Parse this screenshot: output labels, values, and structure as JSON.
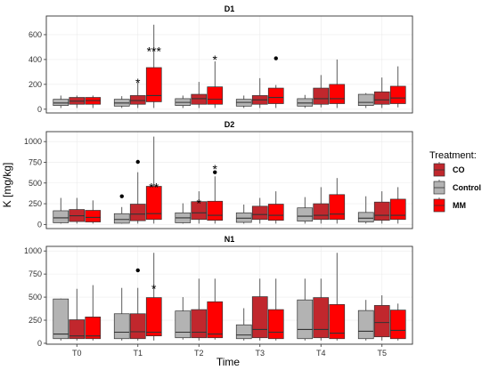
{
  "chart_data": {
    "type": "box",
    "xlabel": "Time",
    "ylabel": "K [mg/kg]",
    "categories": [
      "T0",
      "T1",
      "T2",
      "T3",
      "T4",
      "T5"
    ],
    "legend": {
      "title": "Treatment:",
      "placement": "right",
      "entries": [
        {
          "label": "CO",
          "color": "#c1272d"
        },
        {
          "label": "Control",
          "color": "#b3b3b3"
        },
        {
          "label": "MM",
          "color": "#ff0000"
        }
      ]
    },
    "group_order": [
      "Control",
      "CO",
      "MM"
    ],
    "colors": {
      "Control": "#b3b3b3",
      "CO": "#c1272d",
      "MM": "#ff0000"
    },
    "panels": [
      {
        "title": "D1",
        "ylim": [
          -30,
          750
        ],
        "yticks": [
          0,
          200,
          400,
          600
        ],
        "boxes": {
          "Control": [
            [
              10,
              30,
              50,
              80,
              110
            ],
            [
              10,
              25,
              50,
              80,
              105
            ],
            [
              10,
              30,
              55,
              85,
              110
            ],
            [
              10,
              25,
              55,
              80,
              110
            ],
            [
              10,
              25,
              50,
              85,
              115
            ],
            [
              10,
              30,
              55,
              120,
              130
            ]
          ],
          "CO": [
            [
              10,
              40,
              65,
              95,
              110
            ],
            [
              10,
              40,
              70,
              110,
              215
            ],
            [
              10,
              40,
              85,
              120,
              220
            ],
            [
              10,
              40,
              75,
              110,
              250
            ],
            [
              15,
              40,
              85,
              170,
              275
            ],
            [
              10,
              40,
              75,
              140,
              255
            ]
          ],
          "MM": [
            [
              10,
              40,
              70,
              95,
              110
            ],
            [
              10,
              60,
              110,
              335,
              680
            ],
            [
              10,
              40,
              80,
              180,
              385
            ],
            [
              10,
              45,
              95,
              170,
              195
            ],
            [
              10,
              45,
              85,
              200,
              400
            ],
            [
              15,
              45,
              90,
              185,
              345
            ]
          ]
        },
        "outliers": [
          {
            "cat": "T3",
            "group": "MM",
            "value": 410
          }
        ],
        "annotations": [
          {
            "cat": "T1",
            "group": "CO",
            "text": "*",
            "value": 235
          },
          {
            "cat": "T1",
            "group": "MM",
            "text": "***",
            "value": 490
          },
          {
            "cat": "T2",
            "group": "MM",
            "text": "*",
            "value": 420
          }
        ]
      },
      {
        "title": "D2",
        "ylim": [
          -50,
          1120
        ],
        "yticks": [
          0,
          250,
          500,
          750,
          1000
        ],
        "boxes": {
          "Control": [
            [
              10,
              20,
              80,
              165,
              320
            ],
            [
              10,
              15,
              60,
              130,
              210
            ],
            [
              10,
              20,
              80,
              140,
              255
            ],
            [
              10,
              25,
              75,
              140,
              240
            ],
            [
              10,
              40,
              100,
              200,
              330
            ],
            [
              10,
              30,
              75,
              145,
              340
            ]
          ],
          "CO": [
            [
              10,
              35,
              105,
              180,
              320
            ],
            [
              10,
              45,
              125,
              245,
              630
            ],
            [
              10,
              60,
              140,
              275,
              400
            ],
            [
              10,
              60,
              120,
              220,
              320
            ],
            [
              10,
              60,
              110,
              250,
              450
            ],
            [
              10,
              50,
              110,
              270,
              400
            ]
          ],
          "MM": [
            [
              10,
              30,
              85,
              170,
              290
            ],
            [
              10,
              60,
              130,
              460,
              1060
            ],
            [
              10,
              50,
              110,
              280,
              580
            ],
            [
              10,
              50,
              110,
              245,
              400
            ],
            [
              10,
              60,
              125,
              360,
              560
            ],
            [
              10,
              60,
              110,
              305,
              450
            ]
          ]
        },
        "outliers": [
          {
            "cat": "T1",
            "group": "Control",
            "value": 340
          },
          {
            "cat": "T1",
            "group": "CO",
            "value": 755
          },
          {
            "cat": "T2",
            "group": "MM",
            "value": 630
          }
        ],
        "annotations": [
          {
            "cat": "T1",
            "group": "MM",
            "text": "**",
            "value": 480
          },
          {
            "cat": "T2",
            "group": "CO",
            "text": "*",
            "value": 290
          },
          {
            "cat": "T2",
            "group": "MM",
            "text": "*",
            "value": 700
          }
        ]
      },
      {
        "title": "N1",
        "ylim": [
          -10,
          1050
        ],
        "yticks": [
          0,
          250,
          500,
          750,
          1000
        ],
        "boxes": {
          "Control": [
            [
              30,
              50,
              100,
              480,
              485
            ],
            [
              30,
              50,
              120,
              320,
              600
            ],
            [
              40,
              60,
              120,
              350,
              500
            ],
            [
              30,
              50,
              90,
              200,
              380
            ],
            [
              30,
              50,
              150,
              470,
              700
            ],
            [
              30,
              50,
              130,
              355,
              470
            ]
          ],
          "CO": [
            [
              30,
              50,
              80,
              255,
              590
            ],
            [
              30,
              50,
              125,
              320,
              600
            ],
            [
              30,
              60,
              120,
              365,
              700
            ],
            [
              30,
              60,
              150,
              505,
              700
            ],
            [
              30,
              60,
              150,
              495,
              700
            ],
            [
              30,
              70,
              225,
              410,
              520
            ]
          ],
          "MM": [
            [
              30,
              50,
              80,
              285,
              630
            ],
            [
              30,
              80,
              120,
              495,
              980
            ],
            [
              40,
              60,
              100,
              450,
              700
            ],
            [
              30,
              50,
              120,
              365,
              700
            ],
            [
              30,
              50,
              110,
              420,
              980
            ],
            [
              30,
              50,
              140,
              360,
              430
            ]
          ]
        },
        "outliers": [
          {
            "cat": "T1",
            "group": "CO",
            "value": 790
          }
        ],
        "annotations": [
          {
            "cat": "T1",
            "group": "MM",
            "text": "*",
            "value": 620
          }
        ]
      }
    ]
  }
}
